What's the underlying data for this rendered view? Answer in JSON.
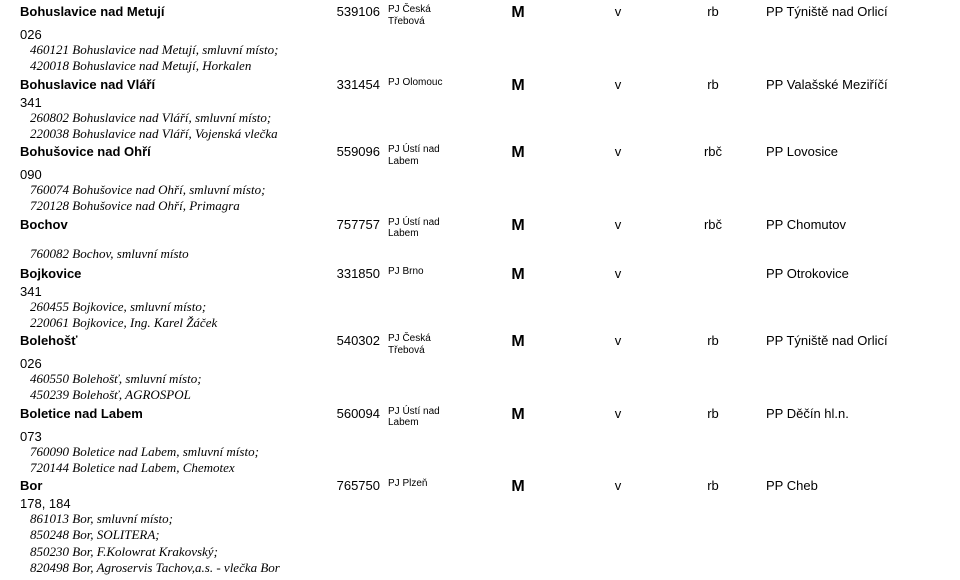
{
  "entries": [
    {
      "title": "Bohuslavice nad Metují",
      "sub": "026",
      "id": "539106",
      "pj": "PJ Česká Třebová",
      "c1": "M",
      "c2": "v",
      "c3": "rb",
      "pp": "PP Týniště nad Orlicí",
      "details": [
        "460121  Bohuslavice nad Metují, smluvní místo;",
        "420018  Bohuslavice nad Metují, Horkalen"
      ]
    },
    {
      "title": "Bohuslavice nad Vláří",
      "sub": "341",
      "id": "331454",
      "pj": "PJ Olomouc",
      "c1": "M",
      "c2": "v",
      "c3": "rb",
      "pp": "PP Valašské Meziříčí",
      "details": [
        "260802  Bohuslavice nad Vláří, smluvní místo;",
        "220038  Bohuslavice nad Vláří, Vojenská vlečka"
      ]
    },
    {
      "title": "Bohušovice nad Ohří",
      "sub": "090",
      "id": "559096",
      "pj": "PJ Ústí nad Labem",
      "c1": "M",
      "c2": "v",
      "c3": "rbč",
      "pp": "PP Lovosice",
      "details": [
        "760074  Bohušovice nad Ohří, smluvní místo;",
        "720128  Bohušovice nad Ohří, Primagra"
      ]
    },
    {
      "title": "Bochov",
      "sub": "",
      "id": "757757",
      "pj": "PJ Ústí nad Labem",
      "c1": "M",
      "c2": "v",
      "c3": "rbč",
      "pp": "PP Chomutov",
      "details": []
    }
  ],
  "standalone": "760082  Bochov, smluvní místo",
  "entries2": [
    {
      "title": "Bojkovice",
      "sub": "341",
      "id": "331850",
      "pj": "PJ Brno",
      "c1": "M",
      "c2": "v",
      "c3": "",
      "pp": "PP Otrokovice",
      "details": [
        "260455  Bojkovice, smluvní místo;",
        "220061  Bojkovice, Ing. Karel Žáček"
      ]
    },
    {
      "title": "Bolehošť",
      "sub": "026",
      "id": "540302",
      "pj": "PJ Česká Třebová",
      "c1": "M",
      "c2": "v",
      "c3": "rb",
      "pp": "PP Týniště nad Orlicí",
      "details": [
        "460550  Bolehošť, smluvní místo;",
        "450239  Bolehošť, AGROSPOL"
      ]
    },
    {
      "title": "Boletice nad Labem",
      "sub": "073",
      "id": "560094",
      "pj": "PJ Ústí nad Labem",
      "c1": "M",
      "c2": "v",
      "c3": "rb",
      "pp": "PP Děčín hl.n.",
      "details": [
        "760090  Boletice nad Labem, smluvní místo;",
        "720144  Boletice nad Labem, Chemotex"
      ]
    },
    {
      "title": "Bor",
      "sub": "178, 184",
      "id": "765750",
      "pj": "PJ Plzeň",
      "c1": "M",
      "c2": "v",
      "c3": "rb",
      "pp": "PP Cheb",
      "details": [
        "861013  Bor, smluvní místo;",
        "850248  Bor, SOLITERA;",
        "850230  Bor, F.Kolowrat Krakovský;",
        "820498  Bor, Agroservis Tachov,a.s. - vlečka Bor"
      ]
    }
  ]
}
